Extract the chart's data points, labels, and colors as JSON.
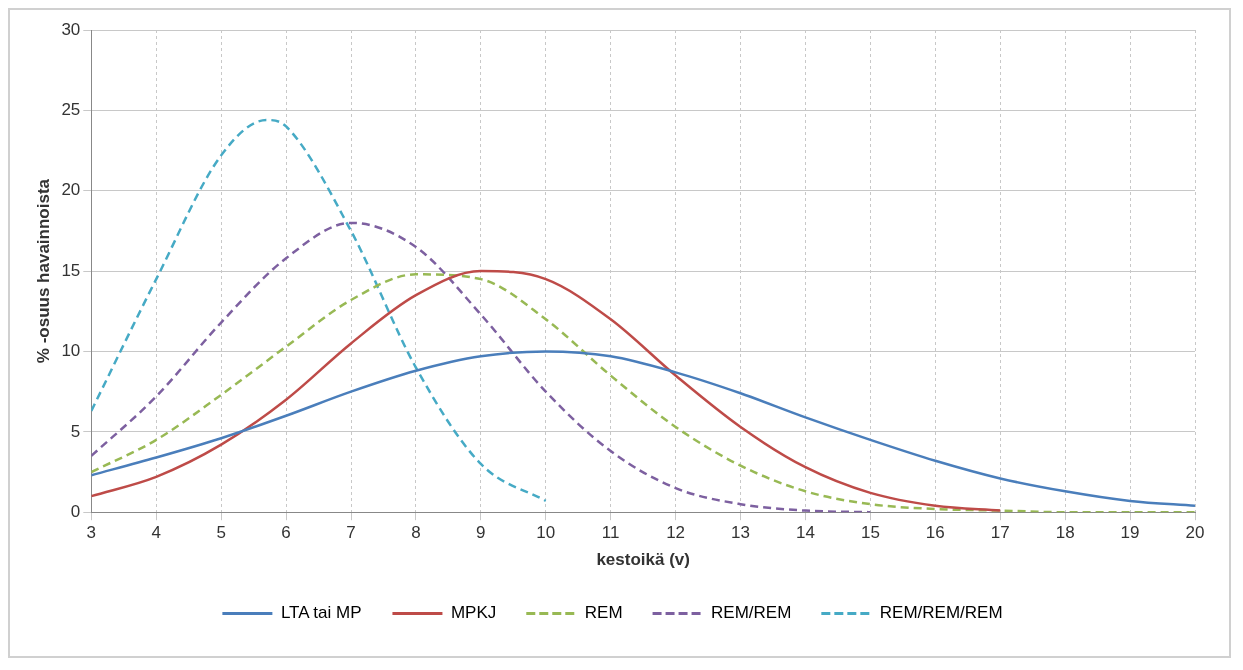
{
  "chart_data": {
    "type": "line",
    "xlabel": "kestoikä (v)",
    "ylabel": "% -osuus havainnoista",
    "xlim": [
      3,
      20
    ],
    "xticks": [
      3,
      4,
      5,
      6,
      7,
      8,
      9,
      10,
      11,
      12,
      13,
      14,
      15,
      16,
      17,
      18,
      19,
      20
    ],
    "ylim": [
      0,
      30
    ],
    "yticks": [
      0,
      5,
      10,
      15,
      20,
      25,
      30
    ],
    "grid": true,
    "legend": "bottom",
    "marker": "none",
    "series": [
      {
        "name": "LTA tai MP",
        "color": "#4a7ebb",
        "line_style": "solid",
        "x": [
          3,
          4,
          5,
          6,
          7,
          8,
          9,
          10,
          11,
          12,
          13,
          14,
          15,
          16,
          17,
          18,
          19,
          20
        ],
        "values": [
          2.3,
          3.4,
          4.6,
          6.0,
          7.5,
          8.8,
          9.7,
          10.0,
          9.7,
          8.7,
          7.4,
          5.9,
          4.5,
          3.2,
          2.1,
          1.3,
          0.7,
          0.4
        ]
      },
      {
        "name": "MPKJ",
        "color": "#be4b48",
        "line_style": "solid",
        "x": [
          3,
          4,
          5,
          6,
          7,
          8,
          9,
          10,
          11,
          12,
          13,
          14,
          15,
          16,
          17
        ],
        "values": [
          1.0,
          2.2,
          4.2,
          7.0,
          10.5,
          13.5,
          15.0,
          14.5,
          12.0,
          8.5,
          5.3,
          2.8,
          1.2,
          0.4,
          0.1
        ]
      },
      {
        "name": "REM",
        "color": "#98b954",
        "line_style": "dashed",
        "x": [
          3,
          4,
          5,
          6,
          7,
          8,
          9,
          10,
          11,
          12,
          13,
          14,
          15,
          16,
          17,
          18,
          19,
          20
        ],
        "values": [
          2.5,
          4.5,
          7.3,
          10.3,
          13.2,
          14.8,
          14.5,
          12.0,
          8.5,
          5.3,
          2.9,
          1.3,
          0.5,
          0.2,
          0.1,
          0,
          0,
          0
        ]
      },
      {
        "name": "REM/REM",
        "color": "#7d60a0",
        "line_style": "dashed",
        "x": [
          3,
          4,
          5,
          6,
          7,
          8,
          9,
          10,
          11,
          12,
          13,
          14,
          15
        ],
        "values": [
          3.5,
          7.2,
          11.8,
          15.8,
          18.0,
          16.5,
          12.3,
          7.5,
          3.8,
          1.5,
          0.5,
          0.1,
          0
        ]
      },
      {
        "name": "REM/REM/REM",
        "color": "#46aac5",
        "line_style": "dashed",
        "x": [
          3,
          4,
          5,
          5.7,
          6,
          7,
          8,
          9,
          10
        ],
        "values": [
          6.3,
          14.5,
          22.2,
          24.4,
          24.0,
          17.5,
          9.0,
          3.0,
          0.7
        ]
      }
    ]
  }
}
